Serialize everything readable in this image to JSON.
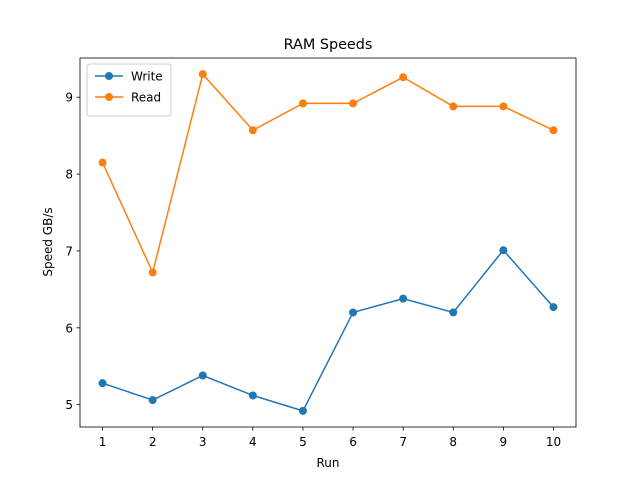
{
  "chart_data": {
    "type": "line",
    "title": "RAM Speeds",
    "xlabel": "Run",
    "ylabel": "Speed GB/s",
    "x": [
      1,
      2,
      3,
      4,
      5,
      6,
      7,
      8,
      9,
      10
    ],
    "xlim": [
      0.55,
      10.45
    ],
    "ylim": [
      4.71,
      9.51
    ],
    "xticks": [
      1,
      2,
      3,
      4,
      5,
      6,
      7,
      8,
      9,
      10
    ],
    "yticks": [
      5,
      6,
      7,
      8,
      9
    ],
    "grid": false,
    "legend_position": "top-left",
    "series": [
      {
        "name": "Write",
        "color": "#1f77b4",
        "marker": "circle",
        "values": [
          5.28,
          5.06,
          5.38,
          5.12,
          4.92,
          6.2,
          6.38,
          6.2,
          7.01,
          6.27
        ]
      },
      {
        "name": "Read",
        "color": "#ff7f0e",
        "marker": "circle",
        "values": [
          8.15,
          6.72,
          9.3,
          8.57,
          8.92,
          8.92,
          9.26,
          8.88,
          8.88,
          8.57
        ]
      }
    ]
  }
}
